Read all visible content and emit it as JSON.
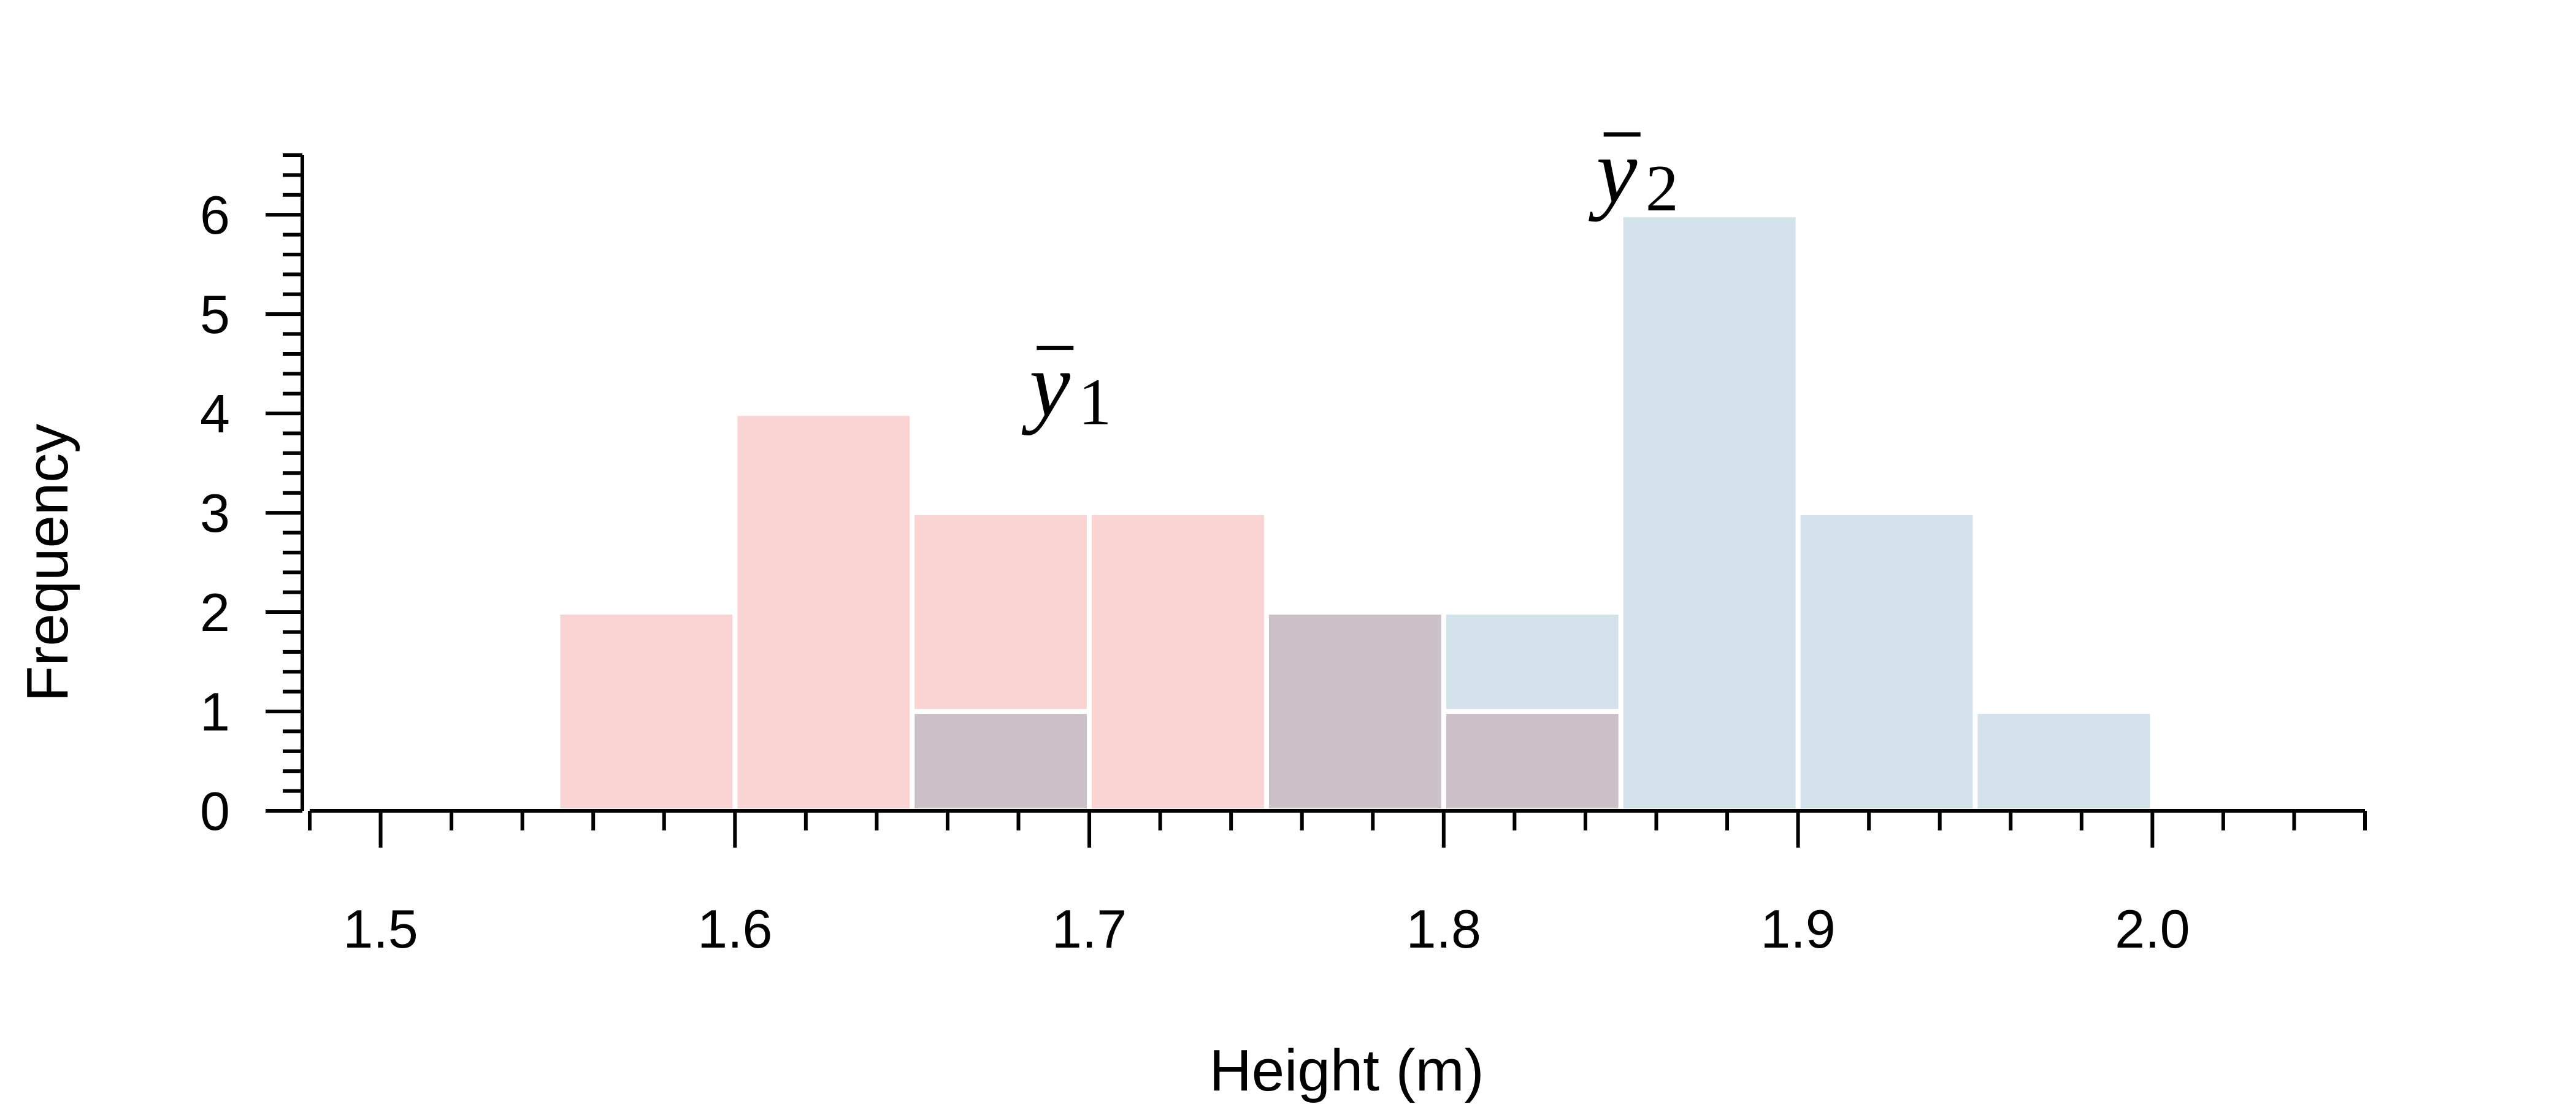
{
  "chart_data": {
    "type": "bar",
    "xlabel": "Height (m)",
    "ylabel": "Frequency",
    "xlim": [
      1.48,
      2.06
    ],
    "ylim": [
      0,
      6.6
    ],
    "x_ticks": [
      "1.5",
      "1.6",
      "1.7",
      "1.8",
      "1.9",
      "2.0"
    ],
    "y_ticks": [
      "0",
      "1",
      "2",
      "3",
      "4",
      "5",
      "6"
    ],
    "bin_width": 0.05,
    "colors": {
      "group1": "#f9d4d2",
      "group2": "#d2e1ea",
      "overlap": "#ccc1c8"
    },
    "series": [
      {
        "bins": [
          1.55,
          1.6,
          1.65,
          1.7,
          1.75,
          1.8
        ],
        "values": [
          2,
          4,
          3,
          3,
          2,
          1
        ]
      },
      {
        "bins": [
          1.65,
          1.75,
          1.8,
          1.85,
          1.9,
          1.95
        ],
        "values": [
          1,
          2,
          2,
          6,
          3,
          1
        ]
      }
    ],
    "annotations": [
      {
        "symbol": "y",
        "subscript": "1",
        "x": 1.69,
        "y": 3.98
      },
      {
        "symbol": "y",
        "subscript": "2",
        "x": 1.85,
        "y": 6.13
      }
    ]
  }
}
